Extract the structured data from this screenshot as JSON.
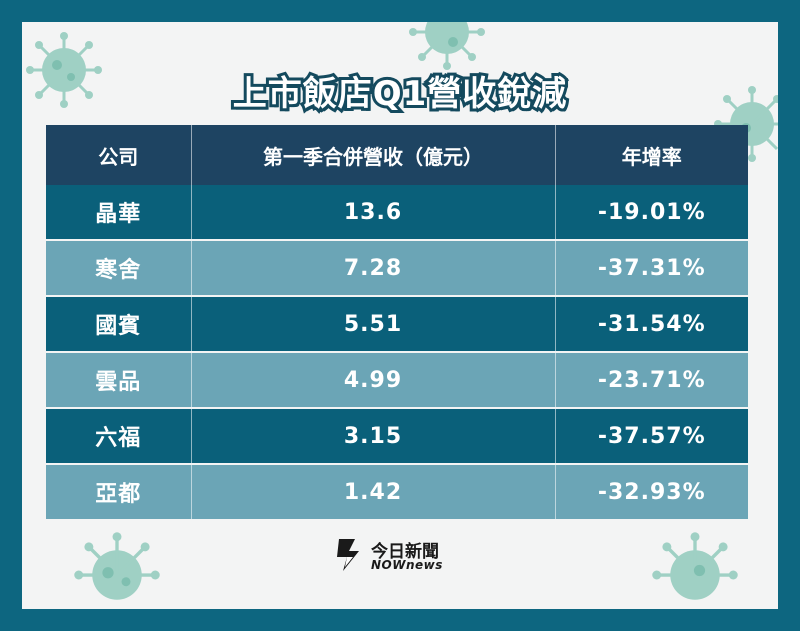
{
  "title": "上市飯店Q1營收銳減",
  "colors": {
    "frame": "#0d6680",
    "header_bg": "#1e4462",
    "row_dark": "#0a607a",
    "row_light": "#6ba5b6",
    "virus": "#9fd0c4"
  },
  "chart_data": {
    "type": "table",
    "columns": [
      "公司",
      "第一季合併營收（億元）",
      "年增率"
    ],
    "rows": [
      [
        "晶華",
        "13.6",
        "-19.01%"
      ],
      [
        "寒舍",
        "7.28",
        "-37.31%"
      ],
      [
        "國賓",
        "5.51",
        "-31.54%"
      ],
      [
        "雲品",
        "4.99",
        "-23.71%"
      ],
      [
        "六福",
        "3.15",
        "-37.57%"
      ],
      [
        "亞都",
        "1.42",
        "-32.93%"
      ]
    ]
  },
  "logo": {
    "name_cn": "今日新聞",
    "name_en": "NOWnews"
  },
  "decorations": [
    "virus-icon",
    "virus-icon",
    "virus-icon",
    "virus-icon",
    "virus-icon",
    "virus-icon"
  ]
}
